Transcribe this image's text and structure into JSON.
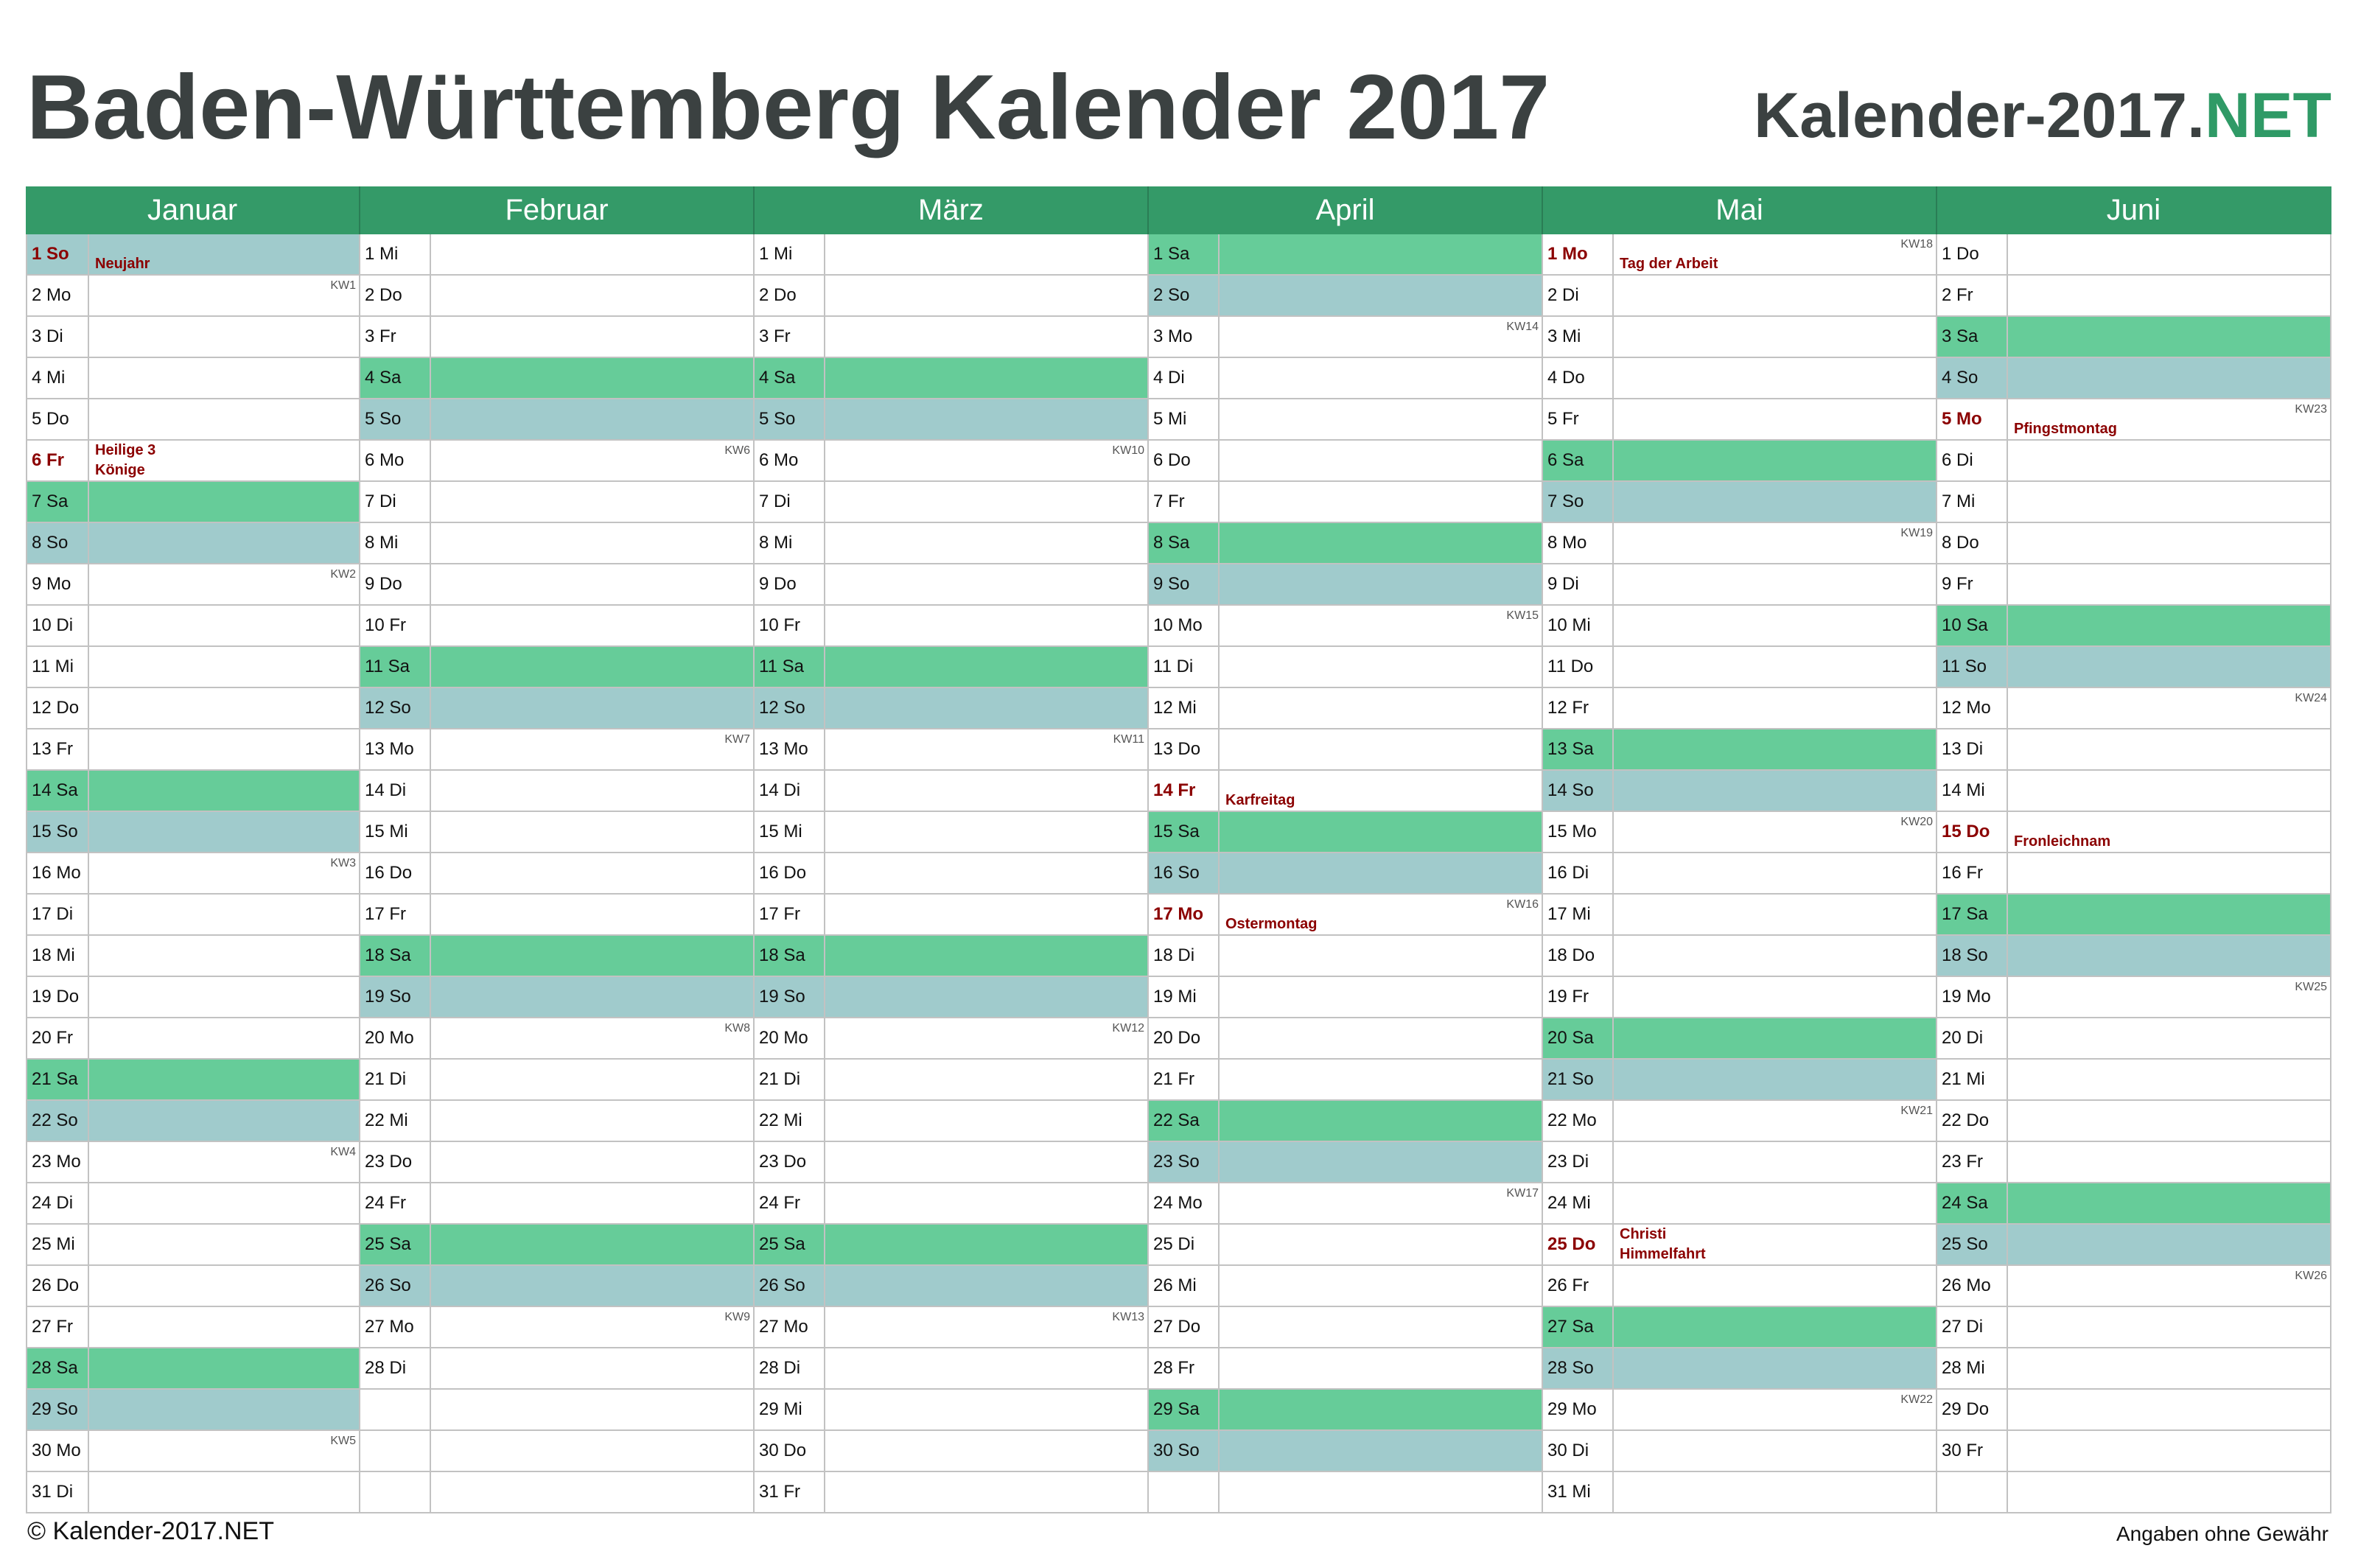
{
  "page": {
    "title": "Baden-Württemberg Kalender 2017"
  },
  "site_logo": {
    "main": "Kalender-2017.",
    "accent": "NET"
  },
  "colors": {
    "title": "#3b4141",
    "accent": "#2f9a66",
    "header": "#349a68",
    "header_text": "#ffffff",
    "saturday": "#66cc99",
    "sunday": "#a0cbcc",
    "holiday": "#8b0000",
    "grid": "#c2c2c2",
    "week_number": "#555555",
    "text": "#111111"
  },
  "months": [
    {
      "name": "Januar",
      "days": [
        {
          "label": "1 So",
          "holiday": [
            "Neujahr"
          ]
        },
        {
          "label": "2 Mo",
          "kw": "KW1"
        },
        {
          "label": "3 Di"
        },
        {
          "label": "4 Mi"
        },
        {
          "label": "5 Do"
        },
        {
          "label": "6 Fr",
          "holiday": [
            "Heilige 3",
            "Könige"
          ]
        },
        {
          "label": "7 Sa"
        },
        {
          "label": "8 So"
        },
        {
          "label": "9 Mo",
          "kw": "KW2"
        },
        {
          "label": "10 Di"
        },
        {
          "label": "11 Mi"
        },
        {
          "label": "12 Do"
        },
        {
          "label": "13 Fr"
        },
        {
          "label": "14 Sa"
        },
        {
          "label": "15 So"
        },
        {
          "label": "16 Mo",
          "kw": "KW3"
        },
        {
          "label": "17 Di"
        },
        {
          "label": "18 Mi"
        },
        {
          "label": "19 Do"
        },
        {
          "label": "20 Fr"
        },
        {
          "label": "21 Sa"
        },
        {
          "label": "22 So"
        },
        {
          "label": "23 Mo",
          "kw": "KW4"
        },
        {
          "label": "24 Di"
        },
        {
          "label": "25 Mi"
        },
        {
          "label": "26 Do"
        },
        {
          "label": "27 Fr"
        },
        {
          "label": "28 Sa"
        },
        {
          "label": "29 So"
        },
        {
          "label": "30 Mo",
          "kw": "KW5"
        },
        {
          "label": "31 Di"
        }
      ]
    },
    {
      "name": "Februar",
      "days": [
        {
          "label": "1 Mi"
        },
        {
          "label": "2 Do"
        },
        {
          "label": "3 Fr"
        },
        {
          "label": "4 Sa"
        },
        {
          "label": "5 So"
        },
        {
          "label": "6 Mo",
          "kw": "KW6"
        },
        {
          "label": "7 Di"
        },
        {
          "label": "8 Mi"
        },
        {
          "label": "9 Do"
        },
        {
          "label": "10 Fr"
        },
        {
          "label": "11 Sa"
        },
        {
          "label": "12 So"
        },
        {
          "label": "13 Mo",
          "kw": "KW7"
        },
        {
          "label": "14 Di"
        },
        {
          "label": "15 Mi"
        },
        {
          "label": "16 Do"
        },
        {
          "label": "17 Fr"
        },
        {
          "label": "18 Sa"
        },
        {
          "label": "19 So"
        },
        {
          "label": "20 Mo",
          "kw": "KW8"
        },
        {
          "label": "21 Di"
        },
        {
          "label": "22 Mi"
        },
        {
          "label": "23 Do"
        },
        {
          "label": "24 Fr"
        },
        {
          "label": "25 Sa"
        },
        {
          "label": "26 So"
        },
        {
          "label": "27 Mo",
          "kw": "KW9"
        },
        {
          "label": "28 Di"
        },
        {},
        {},
        {}
      ]
    },
    {
      "name": "März",
      "days": [
        {
          "label": "1 Mi"
        },
        {
          "label": "2 Do"
        },
        {
          "label": "3 Fr"
        },
        {
          "label": "4 Sa"
        },
        {
          "label": "5 So"
        },
        {
          "label": "6 Mo",
          "kw": "KW10"
        },
        {
          "label": "7 Di"
        },
        {
          "label": "8 Mi"
        },
        {
          "label": "9 Do"
        },
        {
          "label": "10 Fr"
        },
        {
          "label": "11 Sa"
        },
        {
          "label": "12 So"
        },
        {
          "label": "13 Mo",
          "kw": "KW11"
        },
        {
          "label": "14 Di"
        },
        {
          "label": "15 Mi"
        },
        {
          "label": "16 Do"
        },
        {
          "label": "17 Fr"
        },
        {
          "label": "18 Sa"
        },
        {
          "label": "19 So"
        },
        {
          "label": "20 Mo",
          "kw": "KW12"
        },
        {
          "label": "21 Di"
        },
        {
          "label": "22 Mi"
        },
        {
          "label": "23 Do"
        },
        {
          "label": "24 Fr"
        },
        {
          "label": "25 Sa"
        },
        {
          "label": "26 So"
        },
        {
          "label": "27 Mo",
          "kw": "KW13"
        },
        {
          "label": "28 Di"
        },
        {
          "label": "29 Mi"
        },
        {
          "label": "30 Do"
        },
        {
          "label": "31 Fr"
        }
      ]
    },
    {
      "name": "April",
      "days": [
        {
          "label": "1 Sa"
        },
        {
          "label": "2 So"
        },
        {
          "label": "3 Mo",
          "kw": "KW14"
        },
        {
          "label": "4 Di"
        },
        {
          "label": "5 Mi"
        },
        {
          "label": "6 Do"
        },
        {
          "label": "7 Fr"
        },
        {
          "label": "8 Sa"
        },
        {
          "label": "9 So"
        },
        {
          "label": "10 Mo",
          "kw": "KW15"
        },
        {
          "label": "11 Di"
        },
        {
          "label": "12 Mi"
        },
        {
          "label": "13 Do"
        },
        {
          "label": "14 Fr",
          "holiday": [
            "Karfreitag"
          ]
        },
        {
          "label": "15 Sa"
        },
        {
          "label": "16 So"
        },
        {
          "label": "17 Mo",
          "kw": "KW16",
          "holiday": [
            "Ostermontag"
          ]
        },
        {
          "label": "18 Di"
        },
        {
          "label": "19 Mi"
        },
        {
          "label": "20 Do"
        },
        {
          "label": "21 Fr"
        },
        {
          "label": "22 Sa"
        },
        {
          "label": "23 So"
        },
        {
          "label": "24 Mo",
          "kw": "KW17"
        },
        {
          "label": "25 Di"
        },
        {
          "label": "26 Mi"
        },
        {
          "label": "27 Do"
        },
        {
          "label": "28 Fr"
        },
        {
          "label": "29 Sa"
        },
        {
          "label": "30 So"
        },
        {}
      ]
    },
    {
      "name": "Mai",
      "days": [
        {
          "label": "1 Mo",
          "kw": "KW18",
          "holiday": [
            "Tag der Arbeit"
          ]
        },
        {
          "label": "2 Di"
        },
        {
          "label": "3 Mi"
        },
        {
          "label": "4 Do"
        },
        {
          "label": "5 Fr"
        },
        {
          "label": "6 Sa"
        },
        {
          "label": "7 So"
        },
        {
          "label": "8 Mo",
          "kw": "KW19"
        },
        {
          "label": "9 Di"
        },
        {
          "label": "10 Mi"
        },
        {
          "label": "11 Do"
        },
        {
          "label": "12 Fr"
        },
        {
          "label": "13 Sa"
        },
        {
          "label": "14 So"
        },
        {
          "label": "15 Mo",
          "kw": "KW20"
        },
        {
          "label": "16 Di"
        },
        {
          "label": "17 Mi"
        },
        {
          "label": "18 Do"
        },
        {
          "label": "19 Fr"
        },
        {
          "label": "20 Sa"
        },
        {
          "label": "21 So"
        },
        {
          "label": "22 Mo",
          "kw": "KW21"
        },
        {
          "label": "23 Di"
        },
        {
          "label": "24 Mi"
        },
        {
          "label": "25 Do",
          "holiday": [
            "Christi",
            "Himmelfahrt"
          ]
        },
        {
          "label": "26 Fr"
        },
        {
          "label": "27 Sa"
        },
        {
          "label": "28 So"
        },
        {
          "label": "29 Mo",
          "kw": "KW22"
        },
        {
          "label": "30 Di"
        },
        {
          "label": "31 Mi"
        }
      ]
    },
    {
      "name": "Juni",
      "days": [
        {
          "label": "1 Do"
        },
        {
          "label": "2 Fr"
        },
        {
          "label": "3 Sa"
        },
        {
          "label": "4 So"
        },
        {
          "label": "5 Mo",
          "kw": "KW23",
          "holiday": [
            "Pfingstmontag"
          ]
        },
        {
          "label": "6 Di"
        },
        {
          "label": "7 Mi"
        },
        {
          "label": "8 Do"
        },
        {
          "label": "9 Fr"
        },
        {
          "label": "10 Sa"
        },
        {
          "label": "11 So"
        },
        {
          "label": "12 Mo",
          "kw": "KW24"
        },
        {
          "label": "13 Di"
        },
        {
          "label": "14 Mi"
        },
        {
          "label": "15 Do",
          "holiday": [
            "Fronleichnam"
          ]
        },
        {
          "label": "16 Fr"
        },
        {
          "label": "17 Sa"
        },
        {
          "label": "18 So"
        },
        {
          "label": "19 Mo",
          "kw": "KW25"
        },
        {
          "label": "20 Di"
        },
        {
          "label": "21 Mi"
        },
        {
          "label": "22 Do"
        },
        {
          "label": "23 Fr"
        },
        {
          "label": "24 Sa"
        },
        {
          "label": "25 So"
        },
        {
          "label": "26 Mo",
          "kw": "KW26"
        },
        {
          "label": "27 Di"
        },
        {
          "label": "28 Mi"
        },
        {
          "label": "29 Do"
        },
        {
          "label": "30 Fr"
        },
        {}
      ]
    }
  ],
  "footer": {
    "copyright": "© Kalender-2017.NET",
    "disclaimer": "Angaben ohne Gewähr"
  }
}
